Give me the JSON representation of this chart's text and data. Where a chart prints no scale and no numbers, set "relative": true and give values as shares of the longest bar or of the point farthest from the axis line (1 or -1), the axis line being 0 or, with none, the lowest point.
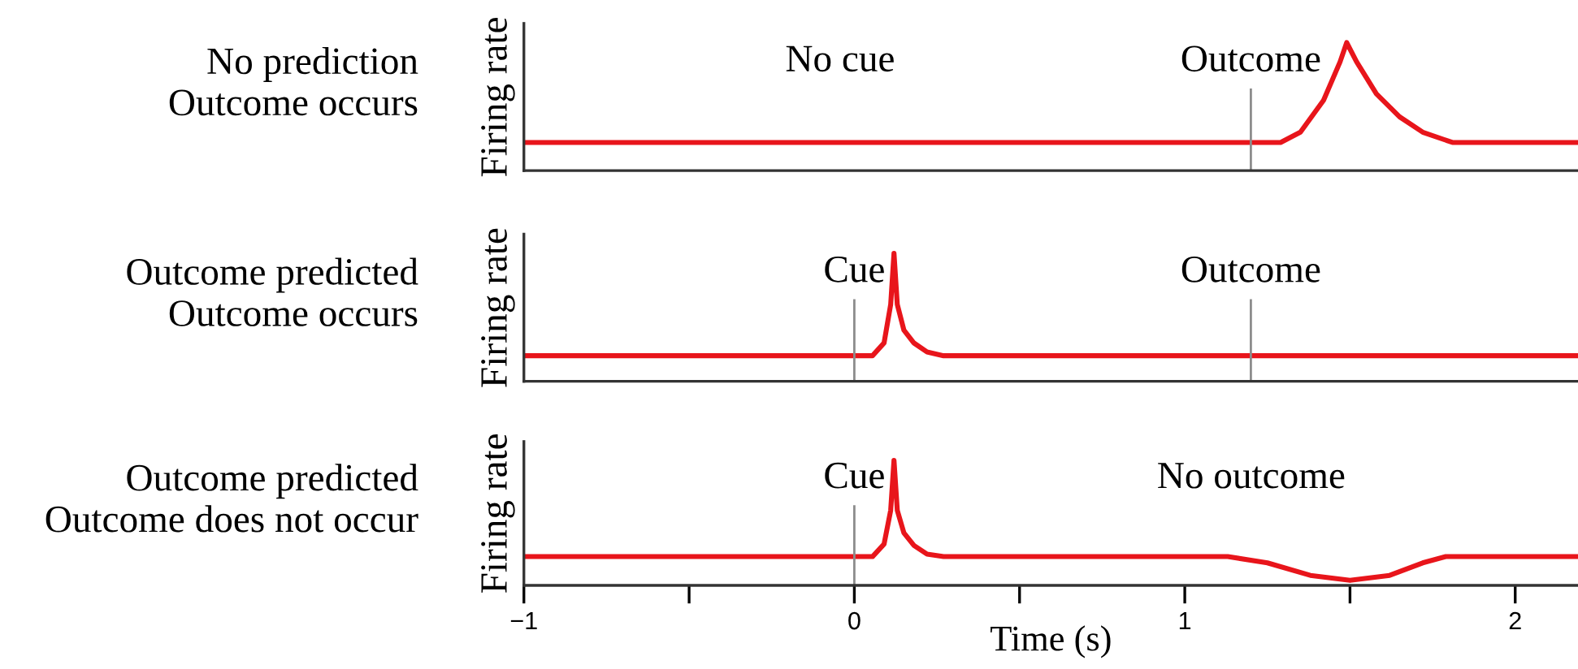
{
  "chart_data": [
    {
      "type": "line",
      "title": "No prediction\nOutcome occurs",
      "ylabel": "Firing rate",
      "relative": true,
      "xlim": [
        -1,
        2.19
      ],
      "tick_labels": false,
      "grid": false,
      "marker": "none",
      "line_style": "solid",
      "annotations": [
        "No cue"
      ],
      "ref_lines": [
        {
          "axis": "x",
          "value": 1.2,
          "label": "Outcome",
          "color": "#8c8c8c"
        }
      ],
      "series": [
        {
          "color": "#e8151b",
          "x": [
            -1,
            1.29,
            1.35,
            1.42,
            1.47,
            1.49,
            1.52,
            1.58,
            1.65,
            1.72,
            1.81,
            2.19
          ],
          "values": [
            0.22,
            0.22,
            0.3,
            0.55,
            0.85,
            1,
            0.85,
            0.6,
            0.42,
            0.3,
            0.22,
            0.22
          ]
        }
      ]
    },
    {
      "type": "line",
      "title": "Outcome predicted\nOutcome occurs",
      "ylabel": "Firing rate",
      "relative": true,
      "xlim": [
        -1,
        2.19
      ],
      "tick_labels": false,
      "grid": false,
      "marker": "none",
      "line_style": "solid",
      "ref_lines": [
        {
          "axis": "x",
          "value": 0,
          "label": "Cue",
          "color": "#8c8c8c"
        },
        {
          "axis": "x",
          "value": 1.2,
          "label": "Outcome",
          "color": "#8c8c8c"
        }
      ],
      "series": [
        {
          "color": "#e8151b",
          "x": [
            -1,
            0.055,
            0.09,
            0.11,
            0.12,
            0.13,
            0.15,
            0.18,
            0.22,
            0.27,
            2.19
          ],
          "values": [
            0.2,
            0.2,
            0.3,
            0.6,
            1,
            0.6,
            0.4,
            0.3,
            0.23,
            0.2,
            0.2
          ]
        }
      ]
    },
    {
      "type": "line",
      "title": "Outcome predicted\nOutcome does not occur",
      "ylabel": "Firing rate",
      "xlabel": "Time (s)",
      "relative": true,
      "xlim": [
        -1,
        2.19
      ],
      "tick_labels": "x",
      "grid": false,
      "marker": "none",
      "line_style": "solid",
      "xticks": [
        {
          "value": -1,
          "label": "−1"
        },
        {
          "value": -0.5,
          "label": null
        },
        0,
        {
          "value": 0.5,
          "label": null
        },
        1,
        {
          "value": 1.5,
          "label": null
        },
        2
      ],
      "annotations": [
        "No outcome"
      ],
      "ref_lines": [
        {
          "axis": "x",
          "value": 0,
          "label": "Cue",
          "color": "#8c8c8c"
        }
      ],
      "series": [
        {
          "color": "#e8151b",
          "x": [
            -1,
            0.055,
            0.09,
            0.11,
            0.12,
            0.13,
            0.15,
            0.18,
            0.22,
            0.27,
            1.13,
            1.25,
            1.38,
            1.5,
            1.62,
            1.72,
            1.79,
            2.19
          ],
          "values": [
            0.23,
            0.23,
            0.33,
            0.6,
            1,
            0.6,
            0.42,
            0.32,
            0.25,
            0.23,
            0.23,
            0.18,
            0.08,
            0.04,
            0.08,
            0.18,
            0.23,
            0.23
          ]
        }
      ]
    }
  ]
}
